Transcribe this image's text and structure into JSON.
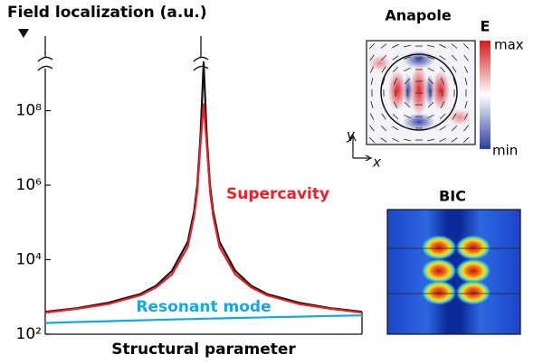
{
  "chart_data": {
    "type": "line",
    "title": "Field localization (a.u.)",
    "xlabel": "Structural parameter",
    "yscale": "log",
    "ylim": [
      100,
      10000000000
    ],
    "xlim": [
      0,
      1
    ],
    "yticks": [
      {
        "value": 100,
        "label": "10²"
      },
      {
        "value": 10000,
        "label": "10⁴"
      },
      {
        "value": 1000000,
        "label": "10⁶"
      },
      {
        "value": 100000000,
        "label": "10⁸"
      }
    ],
    "x": [
      0,
      0.1,
      0.2,
      0.3,
      0.35,
      0.4,
      0.45,
      0.47,
      0.48,
      0.49,
      0.5,
      0.51,
      0.52,
      0.53,
      0.55,
      0.6,
      0.65,
      0.7,
      0.8,
      0.9,
      1
    ],
    "series": [
      {
        "color": "#111111",
        "values": [
          400,
          500,
          700,
          1200,
          2000,
          5000,
          30000,
          200000,
          1000000,
          20000000,
          2000000000,
          20000000,
          1000000,
          200000,
          30000,
          5000,
          2000,
          1200,
          700,
          500,
          400
        ]
      },
      {
        "name": "Supercavity",
        "color": "#e8202a",
        "values": [
          380,
          480,
          650,
          1100,
          1800,
          4000,
          22000,
          150000,
          700000,
          12000000,
          150000000,
          12000000,
          700000,
          150000,
          22000,
          4000,
          1800,
          1100,
          650,
          480,
          380
        ]
      },
      {
        "name": "Resonant mode",
        "color": "#16a7e0",
        "values": [
          200,
          212,
          224,
          236,
          242,
          248,
          254,
          256,
          258,
          259,
          260,
          261,
          262,
          264,
          266,
          272,
          278,
          284,
          296,
          308,
          320
        ]
      }
    ]
  },
  "insets": {
    "anapole": {
      "title": "Anapole",
      "field": "E",
      "max": "max",
      "min": "min",
      "y_axis": "y",
      "x_axis": "x"
    },
    "bic": {
      "title": "BIC"
    }
  }
}
